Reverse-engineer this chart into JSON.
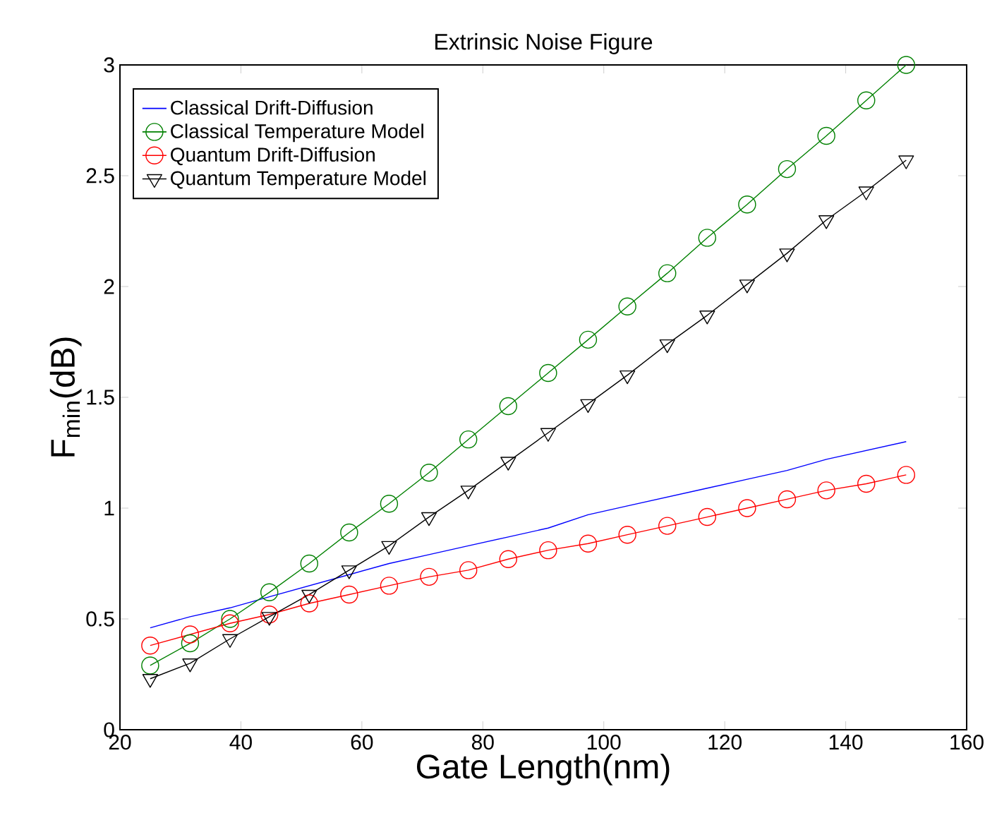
{
  "chart_data": {
    "type": "line",
    "title": "Extrinsic Noise Figure",
    "xlabel": "Gate Length(nm)",
    "ylabel": "F$_{min}$(dB)",
    "x": [
      25,
      31.6,
      38.2,
      44.7,
      51.3,
      57.9,
      64.5,
      71.1,
      77.6,
      84.2,
      90.8,
      97.4,
      103.9,
      110.5,
      117.1,
      123.7,
      130.3,
      136.8,
      143.4,
      150
    ],
    "series": [
      {
        "name": "Classical Drift-Diffusion",
        "color": "#0000ff",
        "values": [
          0.46,
          0.51,
          0.55,
          0.6,
          0.65,
          0.7,
          0.75,
          0.79,
          0.83,
          0.87,
          0.91,
          0.97,
          1.01,
          1.05,
          1.09,
          1.13,
          1.17,
          1.22,
          1.26,
          1.3
        ]
      },
      {
        "name": "Classical Temperature Model",
        "color": "#008000",
        "marker": "circle",
        "values": [
          0.29,
          0.39,
          0.5,
          0.62,
          0.75,
          0.89,
          1.02,
          1.16,
          1.31,
          1.46,
          1.61,
          1.76,
          1.91,
          2.06,
          2.22,
          2.37,
          2.53,
          2.68,
          2.84,
          3.0
        ]
      },
      {
        "name": "Quantum Drift-Diffusion",
        "color": "#ff0000",
        "marker": "circle",
        "values": [
          0.38,
          0.43,
          0.48,
          0.52,
          0.57,
          0.61,
          0.65,
          0.69,
          0.72,
          0.77,
          0.81,
          0.84,
          0.88,
          0.92,
          0.96,
          1.0,
          1.04,
          1.08,
          1.11,
          1.15
        ]
      },
      {
        "name": "Quantum Temperature Model",
        "color": "#000000",
        "marker": "triangle",
        "values": [
          0.23,
          0.3,
          0.41,
          0.51,
          0.61,
          0.72,
          0.83,
          0.96,
          1.08,
          1.21,
          1.34,
          1.47,
          1.6,
          1.74,
          1.87,
          2.01,
          2.15,
          2.3,
          2.43,
          2.57
        ]
      }
    ],
    "xlim": [
      20,
      160
    ],
    "ylim": [
      0,
      3
    ],
    "xticks": [
      20,
      40,
      60,
      80,
      100,
      120,
      140,
      160
    ],
    "yticks": [
      0,
      0.5,
      1,
      1.5,
      2,
      2.5,
      3
    ],
    "grid": false,
    "legend": "top left"
  }
}
